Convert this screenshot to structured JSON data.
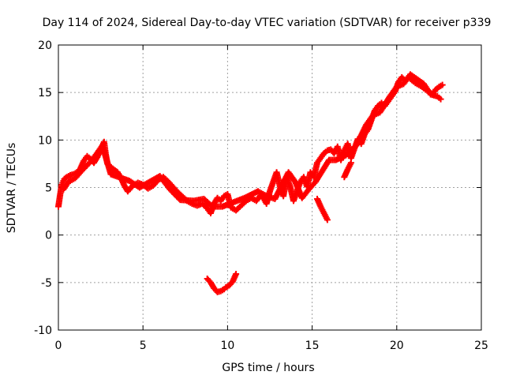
{
  "chart_data": {
    "type": "scatter",
    "title": "Day 114 of 2024, Sidereal Day-to-day VTEC variation (SDTVAR) for receiver p339",
    "xlabel": "GPS time / hours",
    "ylabel": "SDTVAR / TECUs",
    "xlim": [
      0,
      25
    ],
    "ylim": [
      -10,
      20
    ],
    "x_ticks": [
      0,
      5,
      10,
      15,
      20,
      25
    ],
    "y_ticks": [
      -10,
      -5,
      0,
      5,
      10,
      15,
      20
    ],
    "x_tick_labels": [
      "0",
      "5",
      "10",
      "15",
      "20",
      "25"
    ],
    "y_tick_labels": [
      "-10",
      "-5",
      "0",
      "5",
      "10",
      "15",
      "20"
    ],
    "grid": true,
    "marker": "plus",
    "series": [
      {
        "name": "SDTVAR",
        "color": "#ff0000",
        "points": [
          [
            0.0,
            3.0
          ],
          [
            0.1,
            4.2
          ],
          [
            0.2,
            5.3
          ],
          [
            0.35,
            5.9
          ],
          [
            0.5,
            6.1
          ],
          [
            0.7,
            6.3
          ],
          [
            0.9,
            6.4
          ],
          [
            1.1,
            6.6
          ],
          [
            1.3,
            7.0
          ],
          [
            1.5,
            7.8
          ],
          [
            1.7,
            8.3
          ],
          [
            1.9,
            8.0
          ],
          [
            2.1,
            7.6
          ],
          [
            2.3,
            8.2
          ],
          [
            2.5,
            9.0
          ],
          [
            2.7,
            9.8
          ],
          [
            2.8,
            8.5
          ],
          [
            2.9,
            7.5
          ],
          [
            3.2,
            7.0
          ],
          [
            3.5,
            6.6
          ],
          [
            3.7,
            6.0
          ],
          [
            3.9,
            5.2
          ],
          [
            4.1,
            4.6
          ],
          [
            4.4,
            5.2
          ],
          [
            4.7,
            5.5
          ],
          [
            5.0,
            5.3
          ],
          [
            5.3,
            4.9
          ],
          [
            5.6,
            5.2
          ],
          [
            5.9,
            5.8
          ],
          [
            6.2,
            6.1
          ],
          [
            6.5,
            5.6
          ],
          [
            6.8,
            5.0
          ],
          [
            7.0,
            4.6
          ],
          [
            7.3,
            4.1
          ],
          [
            7.6,
            3.6
          ],
          [
            7.9,
            3.3
          ],
          [
            8.2,
            3.1
          ],
          [
            8.5,
            3.3
          ],
          [
            8.8,
            2.8
          ],
          [
            9.0,
            2.3
          ],
          [
            9.2,
            3.3
          ],
          [
            9.4,
            3.9
          ],
          [
            9.6,
            3.6
          ],
          [
            9.8,
            4.1
          ],
          [
            10.0,
            4.3
          ],
          [
            10.2,
            2.9
          ],
          [
            10.5,
            2.6
          ],
          [
            10.8,
            3.1
          ],
          [
            11.1,
            3.6
          ],
          [
            11.4,
            3.9
          ],
          [
            11.7,
            3.6
          ],
          [
            12.0,
            4.3
          ],
          [
            12.3,
            3.3
          ],
          [
            12.5,
            4.6
          ],
          [
            12.7,
            5.6
          ],
          [
            12.9,
            6.6
          ],
          [
            13.1,
            5.1
          ],
          [
            13.3,
            4.1
          ],
          [
            13.5,
            6.1
          ],
          [
            13.7,
            5.1
          ],
          [
            13.9,
            3.6
          ],
          [
            14.1,
            4.6
          ],
          [
            14.3,
            5.6
          ],
          [
            14.5,
            6.1
          ],
          [
            14.7,
            5.1
          ],
          [
            14.9,
            6.6
          ],
          [
            15.1,
            6.1
          ],
          [
            15.3,
            7.6
          ],
          [
            15.5,
            8.1
          ],
          [
            15.7,
            8.6
          ],
          [
            15.9,
            8.9
          ],
          [
            16.1,
            9.0
          ],
          [
            16.3,
            8.6
          ],
          [
            16.5,
            9.3
          ],
          [
            16.7,
            7.9
          ],
          [
            16.9,
            8.9
          ],
          [
            17.1,
            9.6
          ],
          [
            17.3,
            8.1
          ],
          [
            17.5,
            9.1
          ],
          [
            17.7,
            10.1
          ],
          [
            17.9,
            9.6
          ],
          [
            18.1,
            10.6
          ],
          [
            18.3,
            11.1
          ],
          [
            18.5,
            12.1
          ],
          [
            18.7,
            13.1
          ],
          [
            18.9,
            13.6
          ],
          [
            19.1,
            13.9
          ],
          [
            19.3,
            13.6
          ],
          [
            19.5,
            14.1
          ],
          [
            19.7,
            14.6
          ],
          [
            19.9,
            15.1
          ],
          [
            20.1,
            16.1
          ],
          [
            20.3,
            16.6
          ],
          [
            20.5,
            16.2
          ],
          [
            20.7,
            16.6
          ],
          [
            20.9,
            16.3
          ],
          [
            21.1,
            16.0
          ],
          [
            21.3,
            15.8
          ],
          [
            21.5,
            15.6
          ],
          [
            21.7,
            15.3
          ],
          [
            21.9,
            15.1
          ],
          [
            22.1,
            14.8
          ],
          [
            22.3,
            15.3
          ],
          [
            22.5,
            15.6
          ],
          [
            22.7,
            15.8
          ],
          [
            9.9,
            -5.5
          ],
          [
            10.1,
            -5.3
          ],
          [
            10.3,
            -4.9
          ],
          [
            10.5,
            -4.1
          ],
          [
            15.9,
            1.6
          ],
          [
            15.7,
            2.3
          ],
          [
            15.5,
            3.0
          ],
          [
            15.3,
            3.8
          ],
          [
            16.9,
            6.1
          ],
          [
            17.1,
            6.9
          ],
          [
            17.3,
            7.6
          ],
          [
            0.3,
            4.8
          ],
          [
            0.6,
            5.6
          ],
          [
            1.0,
            6.0
          ],
          [
            1.4,
            6.8
          ],
          [
            2.0,
            7.9
          ],
          [
            2.6,
            9.4
          ],
          [
            3.1,
            6.4
          ],
          [
            4.2,
            5.7
          ],
          [
            4.8,
            5.0
          ],
          [
            6.0,
            6.2
          ],
          [
            6.6,
            4.8
          ],
          [
            7.2,
            3.7
          ],
          [
            8.0,
            3.6
          ],
          [
            8.6,
            3.8
          ],
          [
            9.1,
            3.0
          ],
          [
            9.7,
            3.0
          ],
          [
            11.0,
            3.9
          ],
          [
            11.8,
            4.6
          ],
          [
            12.2,
            4.2
          ],
          [
            12.8,
            3.8
          ],
          [
            13.6,
            6.6
          ],
          [
            14.0,
            5.6
          ],
          [
            14.4,
            3.9
          ],
          [
            14.8,
            4.8
          ],
          [
            15.2,
            5.6
          ],
          [
            16.0,
            7.9
          ],
          [
            16.4,
            7.9
          ],
          [
            17.0,
            8.4
          ],
          [
            17.6,
            9.4
          ],
          [
            18.2,
            11.6
          ],
          [
            18.6,
            12.6
          ],
          [
            19.0,
            12.9
          ],
          [
            19.6,
            14.6
          ],
          [
            20.0,
            15.6
          ],
          [
            20.4,
            15.9
          ],
          [
            20.8,
            16.9
          ],
          [
            21.2,
            16.4
          ],
          [
            21.6,
            15.9
          ],
          [
            22.0,
            14.8
          ],
          [
            22.4,
            14.6
          ],
          [
            22.6,
            14.3
          ]
        ],
        "subsegments": [
          [
            [
              8.8,
              -4.6
            ],
            [
              9.0,
              -5.0
            ],
            [
              9.2,
              -5.6
            ],
            [
              9.4,
              -6.0
            ],
            [
              9.6,
              -5.9
            ],
            [
              9.8,
              -5.7
            ]
          ]
        ]
      }
    ]
  }
}
